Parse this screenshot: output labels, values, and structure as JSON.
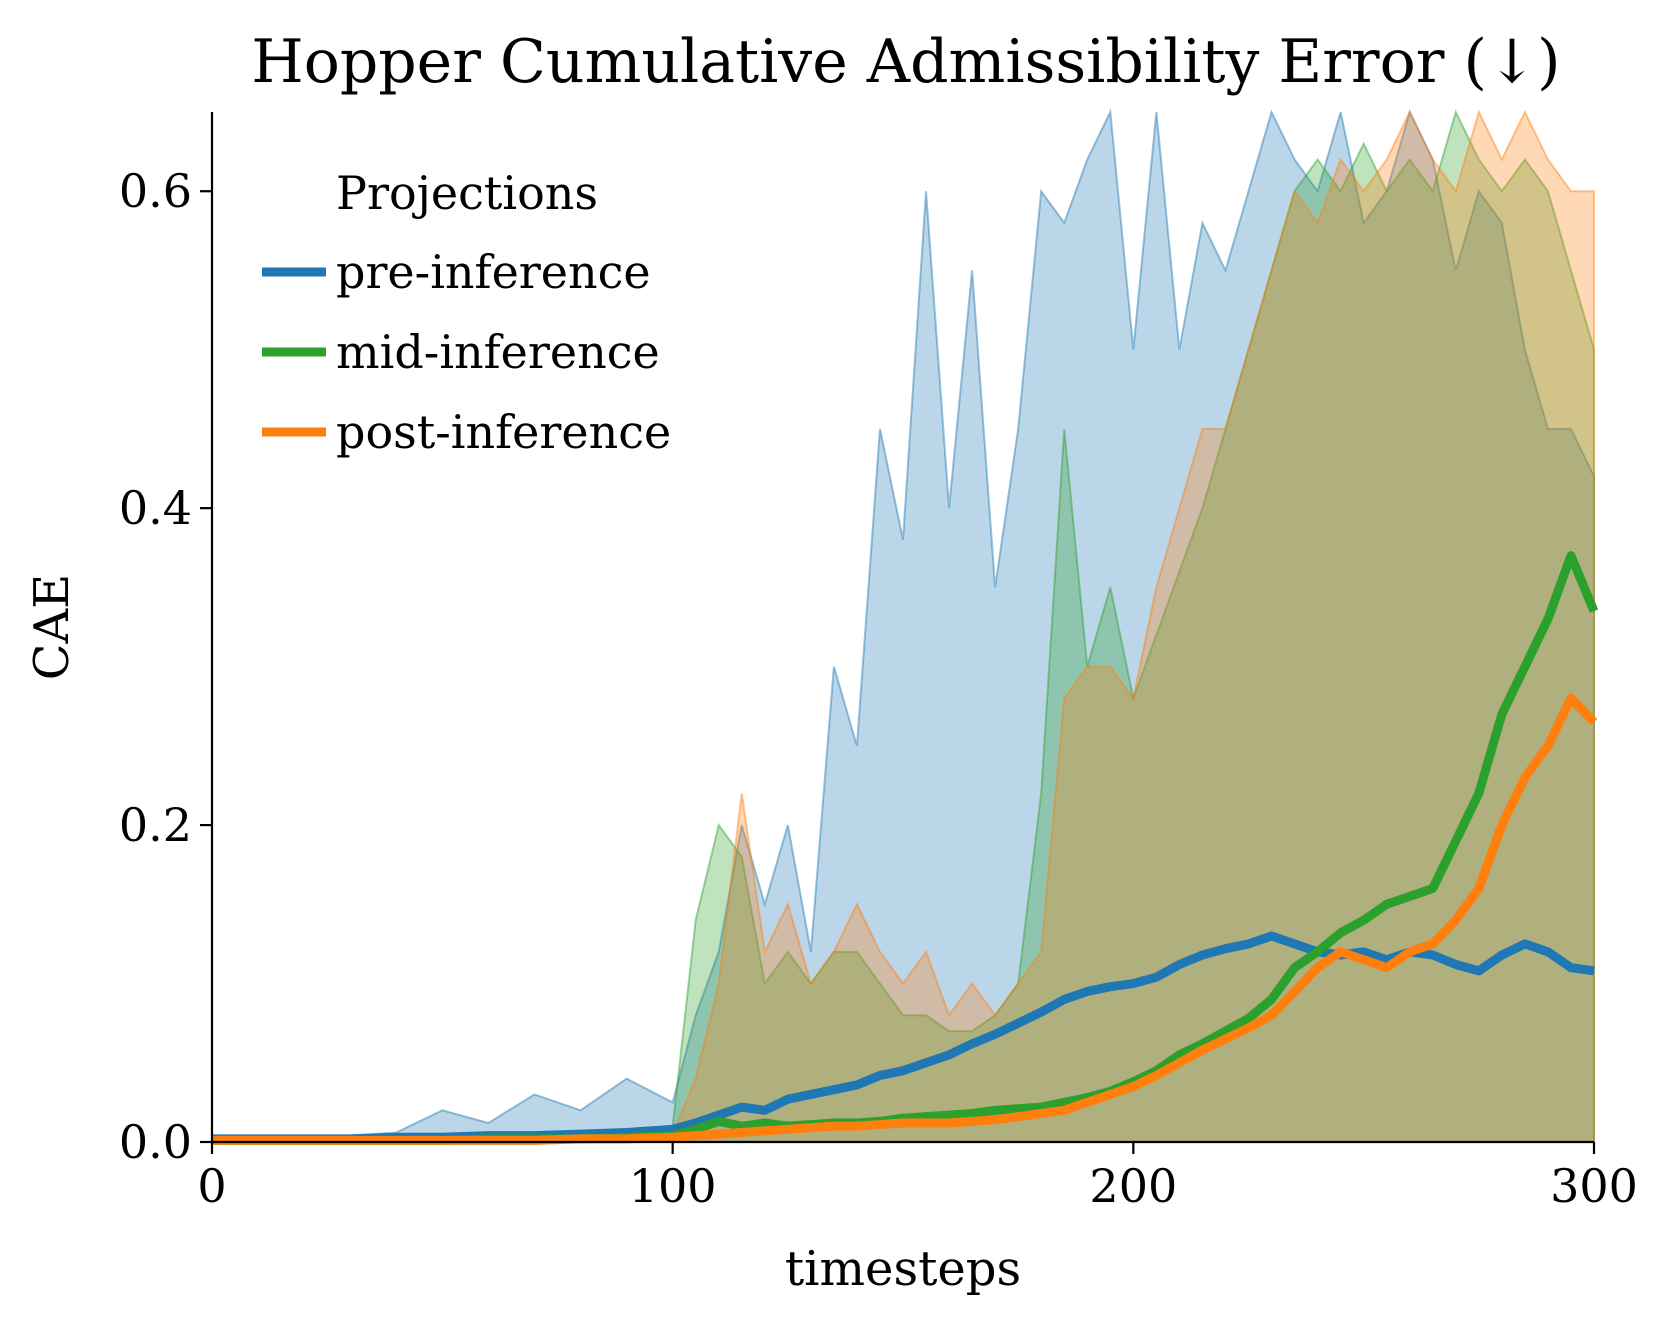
{
  "chart_data": {
    "type": "line",
    "title": "Hopper Cumulative Admissibility Error (↓)",
    "xlabel": "timesteps",
    "ylabel": "CAE",
    "xlim": [
      0,
      300
    ],
    "ylim": [
      0,
      0.65
    ],
    "xticks": [
      0,
      100,
      200,
      300
    ],
    "xtick_labels": [
      "0",
      "100",
      "200",
      "300"
    ],
    "yticks": [
      0.0,
      0.2,
      0.4,
      0.6
    ],
    "ytick_labels": [
      "0.0",
      "0.2",
      "0.4",
      "0.6"
    ],
    "grid": false,
    "legend": {
      "title": "Projections",
      "placement": "upper-left"
    },
    "series": [
      {
        "name": "pre-inference",
        "color": "#1f77b4",
        "x": [
          0,
          10,
          20,
          30,
          40,
          50,
          60,
          70,
          80,
          90,
          100,
          105,
          110,
          115,
          120,
          125,
          130,
          135,
          140,
          145,
          150,
          155,
          160,
          165,
          170,
          175,
          180,
          185,
          190,
          195,
          200,
          205,
          210,
          215,
          220,
          225,
          230,
          235,
          240,
          245,
          250,
          255,
          260,
          265,
          270,
          275,
          280,
          285,
          290,
          295,
          300
        ],
        "mean": [
          0.002,
          0.002,
          0.002,
          0.002,
          0.003,
          0.003,
          0.004,
          0.004,
          0.005,
          0.006,
          0.008,
          0.012,
          0.017,
          0.022,
          0.02,
          0.027,
          0.03,
          0.033,
          0.036,
          0.042,
          0.045,
          0.05,
          0.055,
          0.062,
          0.068,
          0.075,
          0.082,
          0.09,
          0.095,
          0.098,
          0.1,
          0.104,
          0.112,
          0.118,
          0.122,
          0.125,
          0.13,
          0.125,
          0.12,
          0.118,
          0.12,
          0.115,
          0.12,
          0.118,
          0.112,
          0.108,
          0.118,
          0.125,
          0.12,
          0.11,
          0.108
        ],
        "upper": [
          0.004,
          0.004,
          0.003,
          0.004,
          0.006,
          0.02,
          0.012,
          0.03,
          0.02,
          0.04,
          0.025,
          0.08,
          0.12,
          0.2,
          0.15,
          0.2,
          0.12,
          0.3,
          0.25,
          0.45,
          0.38,
          0.6,
          0.4,
          0.55,
          0.35,
          0.45,
          0.6,
          0.58,
          0.62,
          0.65,
          0.5,
          0.65,
          0.5,
          0.58,
          0.55,
          0.6,
          0.65,
          0.62,
          0.6,
          0.65,
          0.58,
          0.6,
          0.65,
          0.62,
          0.55,
          0.6,
          0.58,
          0.5,
          0.45,
          0.45,
          0.42
        ]
      },
      {
        "name": "mid-inference",
        "color": "#2ca02c",
        "x": [
          0,
          10,
          20,
          30,
          40,
          50,
          60,
          70,
          80,
          90,
          100,
          105,
          110,
          115,
          120,
          125,
          130,
          135,
          140,
          145,
          150,
          155,
          160,
          165,
          170,
          175,
          180,
          185,
          190,
          195,
          200,
          205,
          210,
          215,
          220,
          225,
          230,
          235,
          240,
          245,
          250,
          255,
          260,
          265,
          270,
          275,
          280,
          285,
          290,
          295,
          300
        ],
        "mean": [
          0.001,
          0.001,
          0.001,
          0.001,
          0.001,
          0.001,
          0.002,
          0.002,
          0.002,
          0.003,
          0.004,
          0.008,
          0.013,
          0.01,
          0.012,
          0.01,
          0.011,
          0.012,
          0.012,
          0.013,
          0.015,
          0.016,
          0.017,
          0.018,
          0.02,
          0.021,
          0.022,
          0.025,
          0.028,
          0.032,
          0.038,
          0.045,
          0.055,
          0.062,
          0.07,
          0.078,
          0.09,
          0.11,
          0.12,
          0.132,
          0.14,
          0.15,
          0.155,
          0.16,
          0.19,
          0.22,
          0.27,
          0.3,
          0.33,
          0.37,
          0.335
        ],
        "upper": [
          0.002,
          0.002,
          0.002,
          0.002,
          0.002,
          0.002,
          0.003,
          0.003,
          0.004,
          0.006,
          0.01,
          0.14,
          0.2,
          0.18,
          0.1,
          0.12,
          0.1,
          0.12,
          0.12,
          0.1,
          0.08,
          0.08,
          0.07,
          0.07,
          0.08,
          0.1,
          0.22,
          0.45,
          0.3,
          0.35,
          0.28,
          0.32,
          0.36,
          0.4,
          0.45,
          0.5,
          0.55,
          0.6,
          0.62,
          0.6,
          0.63,
          0.6,
          0.62,
          0.6,
          0.65,
          0.62,
          0.6,
          0.62,
          0.6,
          0.55,
          0.5
        ]
      },
      {
        "name": "post-inference",
        "color": "#ff7f0e",
        "x": [
          0,
          10,
          20,
          30,
          40,
          50,
          60,
          70,
          80,
          90,
          100,
          105,
          110,
          115,
          120,
          125,
          130,
          135,
          140,
          145,
          150,
          155,
          160,
          165,
          170,
          175,
          180,
          185,
          190,
          195,
          200,
          205,
          210,
          215,
          220,
          225,
          230,
          235,
          240,
          245,
          250,
          255,
          260,
          265,
          270,
          275,
          280,
          285,
          290,
          295,
          300
        ],
        "mean": [
          0.001,
          0.001,
          0.001,
          0.001,
          0.001,
          0.001,
          0.001,
          0.001,
          0.002,
          0.002,
          0.003,
          0.004,
          0.005,
          0.006,
          0.007,
          0.008,
          0.009,
          0.01,
          0.01,
          0.011,
          0.012,
          0.012,
          0.012,
          0.013,
          0.014,
          0.016,
          0.018,
          0.02,
          0.025,
          0.03,
          0.035,
          0.042,
          0.05,
          0.058,
          0.065,
          0.072,
          0.08,
          0.095,
          0.11,
          0.12,
          0.115,
          0.11,
          0.12,
          0.125,
          0.14,
          0.16,
          0.2,
          0.23,
          0.25,
          0.28,
          0.265
        ],
        "upper": [
          0.002,
          0.002,
          0.002,
          0.002,
          0.002,
          0.002,
          0.002,
          0.002,
          0.003,
          0.004,
          0.005,
          0.04,
          0.1,
          0.22,
          0.12,
          0.15,
          0.1,
          0.12,
          0.15,
          0.12,
          0.1,
          0.12,
          0.08,
          0.1,
          0.08,
          0.1,
          0.12,
          0.28,
          0.3,
          0.3,
          0.28,
          0.35,
          0.4,
          0.45,
          0.45,
          0.5,
          0.55,
          0.6,
          0.58,
          0.62,
          0.6,
          0.62,
          0.65,
          0.62,
          0.6,
          0.65,
          0.62,
          0.65,
          0.62,
          0.6,
          0.6
        ]
      }
    ]
  }
}
